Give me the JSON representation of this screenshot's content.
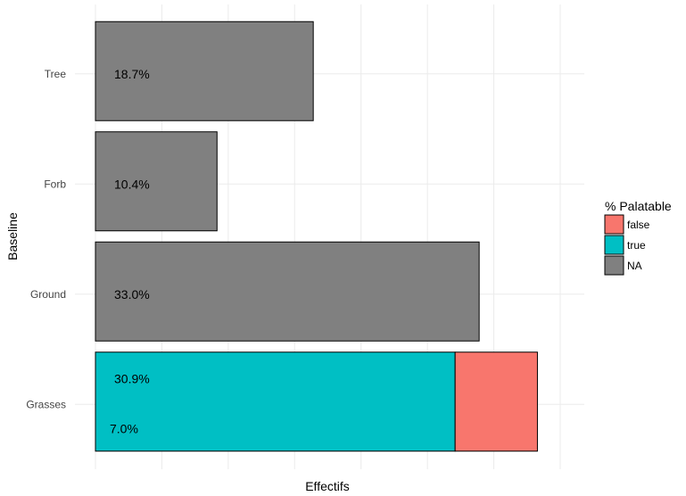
{
  "chart_data": {
    "type": "bar",
    "orientation": "horizontal",
    "stacked": true,
    "categories": [
      "Grasses",
      "Ground",
      "Forb",
      "Tree"
    ],
    "series": [
      {
        "name": "NA",
        "color": "#808080",
        "values": [
          0,
          30.3,
          9.6,
          17.2
        ]
      },
      {
        "name": "true",
        "color": "#00BFC4",
        "values": [
          28.4,
          0,
          0,
          0
        ]
      },
      {
        "name": "false",
        "color": "#F8766D",
        "values": [
          6.5,
          0,
          0,
          0
        ]
      }
    ],
    "data_labels": [
      {
        "category": "Tree",
        "text": "18.7%"
      },
      {
        "category": "Forb",
        "text": "10.4%"
      },
      {
        "category": "Ground",
        "text": "33.0%"
      },
      {
        "category": "Grasses",
        "text": "30.9%",
        "slot": "upper"
      },
      {
        "category": "Grasses",
        "text": "7.0%",
        "slot": "lower"
      }
    ],
    "xlabel": "Effectifs",
    "ylabel": "Baseline",
    "xlim": [
      0,
      36.7
    ],
    "x_tick_labels": false,
    "grid": true,
    "legend": {
      "title": "% Palatable",
      "position": "right",
      "entries": [
        {
          "label": "false",
          "color": "#F8766D"
        },
        {
          "label": "true",
          "color": "#00BFC4"
        },
        {
          "label": "NA",
          "color": "#808080"
        }
      ]
    }
  }
}
